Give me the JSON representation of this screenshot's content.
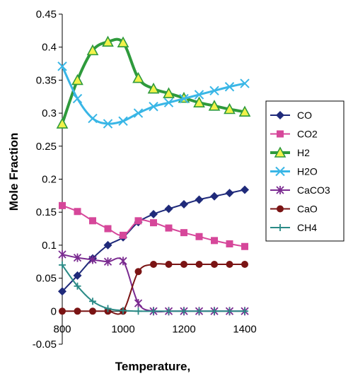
{
  "chart_data": {
    "type": "line",
    "title": "",
    "xlabel": "Temperature,",
    "ylabel": "Mole Fraction",
    "xlim": [
      800,
      1400
    ],
    "ylim": [
      -0.05,
      0.45
    ],
    "x_ticks": [
      800,
      1000,
      1200,
      1400
    ],
    "x_tick_labels": [
      "800",
      "1000",
      "1200",
      "1400"
    ],
    "y_ticks": [
      -0.05,
      0,
      0.05,
      0.1,
      0.15,
      0.2,
      0.25,
      0.3,
      0.35,
      0.4,
      0.45
    ],
    "y_tick_labels": [
      "-0.05",
      "0",
      "0.05",
      "0.1",
      "0.15",
      "0.2",
      "0.25",
      "0.3",
      "0.35",
      "0.4",
      "0.45"
    ],
    "grid": false,
    "legend_position": "right",
    "x": [
      800,
      850,
      900,
      950,
      1000,
      1050,
      1100,
      1150,
      1200,
      1250,
      1300,
      1350,
      1400
    ],
    "series": [
      {
        "name": "CO",
        "color": "#1f2a7a",
        "marker": "diamond",
        "line_width": 2,
        "values": [
          0.03,
          0.054,
          0.08,
          0.1,
          0.112,
          0.135,
          0.147,
          0.155,
          0.162,
          0.169,
          0.174,
          0.179,
          0.184
        ]
      },
      {
        "name": "CO2",
        "color": "#d6479a",
        "marker": "square",
        "line_width": 2,
        "values": [
          0.16,
          0.151,
          0.137,
          0.125,
          0.115,
          0.137,
          0.134,
          0.126,
          0.119,
          0.113,
          0.107,
          0.102,
          0.098
        ]
      },
      {
        "name": "H2",
        "color": "#2e9a3c",
        "marker": "triangle",
        "line_width": 4,
        "values": [
          0.284,
          0.35,
          0.395,
          0.408,
          0.407,
          0.353,
          0.337,
          0.33,
          0.323,
          0.316,
          0.311,
          0.306,
          0.302
        ]
      },
      {
        "name": "H2O",
        "color": "#39b6e6",
        "marker": "x",
        "line_width": 3,
        "values": [
          0.371,
          0.322,
          0.292,
          0.284,
          0.288,
          0.3,
          0.31,
          0.316,
          0.322,
          0.328,
          0.334,
          0.34,
          0.345
        ]
      },
      {
        "name": "CaCO3",
        "color": "#7a2a90",
        "marker": "star",
        "line_width": 2,
        "values": [
          0.086,
          0.081,
          0.078,
          0.075,
          0.076,
          0.012,
          0.0,
          0.0,
          0.0,
          0.0,
          0.0,
          0.0,
          0.0
        ]
      },
      {
        "name": "CaO",
        "color": "#7a1414",
        "marker": "circle",
        "line_width": 2,
        "values": [
          0.0,
          0.0,
          0.0,
          0.0,
          0.0,
          0.06,
          0.071,
          0.071,
          0.071,
          0.071,
          0.071,
          0.071,
          0.071
        ]
      },
      {
        "name": "CH4",
        "color": "#2a8a86",
        "marker": "plus",
        "line_width": 2,
        "values": [
          0.07,
          0.038,
          0.015,
          0.004,
          0.001,
          0.0,
          0.0,
          0.0,
          0.0,
          0.0,
          0.0,
          0.0,
          0.0
        ]
      }
    ]
  }
}
